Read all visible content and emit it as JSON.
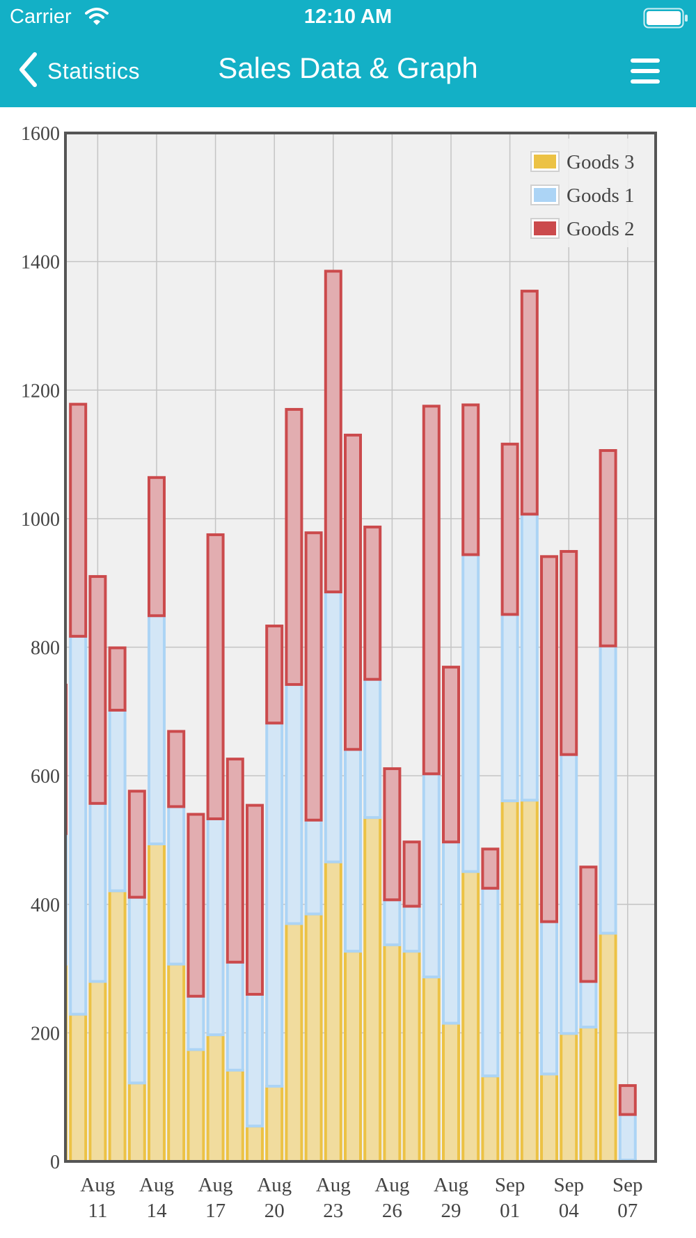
{
  "status_bar": {
    "carrier": "Carrier",
    "time": "12:10 AM"
  },
  "nav": {
    "back_label": "Statistics",
    "title": "Sales Data & Graph"
  },
  "colors": {
    "bar_fill": "#13b0c6",
    "goods3_fill": "#f1dc9e",
    "goods3_stroke": "#ecc245",
    "goods1_fill": "#d3e6f6",
    "goods1_stroke": "#acd4f5",
    "goods2_fill": "#e2adb0",
    "goods2_stroke": "#cb4a4c",
    "plot_bg": "#f0f0f0",
    "grid": "#c4c4c4",
    "axis": "#555555"
  },
  "chart_data": {
    "type": "bar",
    "stacked": true,
    "x": [
      "2019-08-09",
      "2019-08-10",
      "2019-08-11",
      "2019-08-12",
      "2019-08-13",
      "2019-08-14",
      "2019-08-15",
      "2019-08-16",
      "2019-08-17",
      "2019-08-18",
      "2019-08-19",
      "2019-08-20",
      "2019-08-21",
      "2019-08-22",
      "2019-08-23",
      "2019-08-24",
      "2019-08-25",
      "2019-08-26",
      "2019-08-27",
      "2019-08-28",
      "2019-08-29",
      "2019-08-30",
      "2019-08-31",
      "2019-09-01",
      "2019-09-02",
      "2019-09-03",
      "2019-09-04",
      "2019-09-05",
      "2019-09-06",
      "2019-09-07"
    ],
    "x_tick_labels": [
      {
        "date": "2019-08-11",
        "line1": "Aug",
        "line2": "11"
      },
      {
        "date": "2019-08-14",
        "line1": "Aug",
        "line2": "14"
      },
      {
        "date": "2019-08-17",
        "line1": "Aug",
        "line2": "17"
      },
      {
        "date": "2019-08-20",
        "line1": "Aug",
        "line2": "20"
      },
      {
        "date": "2019-08-23",
        "line1": "Aug",
        "line2": "23"
      },
      {
        "date": "2019-08-26",
        "line1": "Aug",
        "line2": "26"
      },
      {
        "date": "2019-08-29",
        "line1": "Aug",
        "line2": "29"
      },
      {
        "date": "2019-09-01",
        "line1": "Sep",
        "line2": "01"
      },
      {
        "date": "2019-09-04",
        "line1": "Sep",
        "line2": "04"
      },
      {
        "date": "2019-09-07",
        "line1": "Sep",
        "line2": "07"
      }
    ],
    "series": [
      {
        "name": "Goods 3",
        "color": "#ecc245",
        "values": [
          307,
          229,
          280,
          421,
          122,
          494,
          307,
          174,
          197,
          142,
          55,
          117,
          370,
          385,
          466,
          327,
          535,
          337,
          327,
          287,
          215,
          451,
          133,
          561,
          562,
          136,
          199,
          209,
          355,
          2
        ]
      },
      {
        "name": "Goods 1",
        "color": "#acd4f5",
        "values": [
          203,
          588,
          277,
          281,
          289,
          355,
          245,
          83,
          336,
          168,
          205,
          565,
          372,
          146,
          420,
          314,
          215,
          70,
          70,
          316,
          282,
          493,
          292,
          290,
          445,
          237,
          434,
          71,
          447,
          71
        ]
      },
      {
        "name": "Goods 2",
        "color": "#cb4a4c",
        "values": [
          231,
          361,
          353,
          97,
          165,
          215,
          117,
          283,
          442,
          316,
          294,
          151,
          428,
          447,
          499,
          489,
          237,
          204,
          100,
          572,
          272,
          233,
          61,
          265,
          347,
          568,
          316,
          178,
          304,
          45
        ]
      }
    ],
    "legend_order": [
      "Goods 3",
      "Goods 1",
      "Goods 2"
    ],
    "legend_position": "top-right",
    "ylim": [
      0,
      1600
    ],
    "yticks": [
      0,
      200,
      400,
      600,
      800,
      1000,
      1200,
      1400,
      1600
    ],
    "grid": true
  }
}
